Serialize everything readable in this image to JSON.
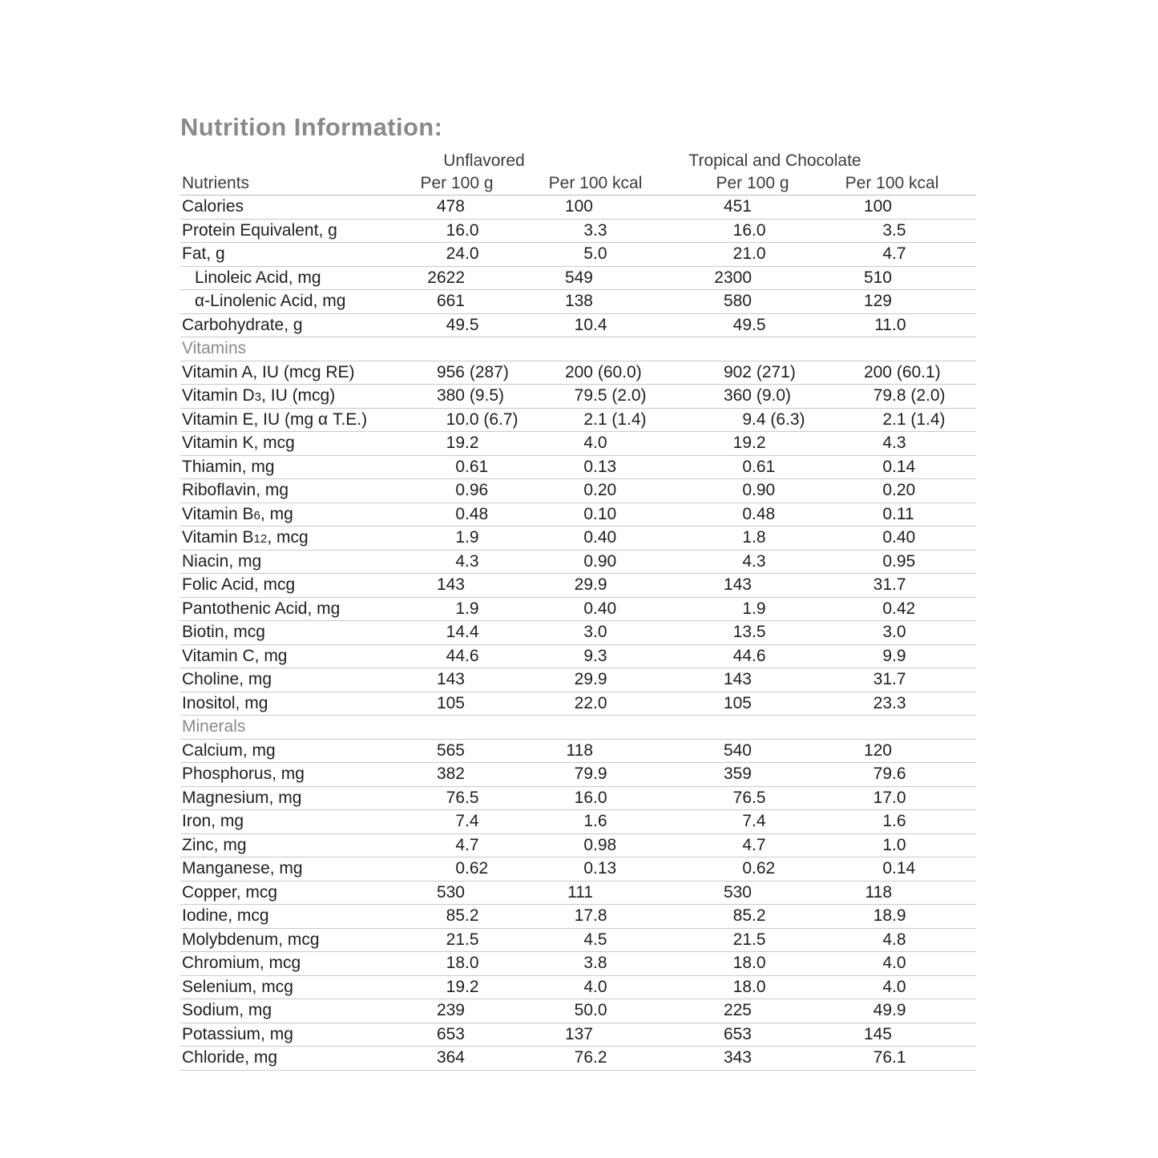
{
  "title": "Nutrition Information:",
  "colors": {
    "title_gray": "#8a8a8a",
    "header_text": "#3d3d3d",
    "body_text": "#1f1f1f",
    "rule_gray": "#c9c9c9"
  },
  "table": {
    "group_headers": [
      {
        "label": "Unflavored"
      },
      {
        "label": "Tropical and Chocolate"
      }
    ],
    "columns": {
      "nutrients": "Nutrients",
      "col1": "Per 100 g",
      "col2": "Per 100 kcal",
      "col3": "Per 100 g",
      "col4": "Per 100 kcal"
    },
    "rows": [
      {
        "parts": [
          {
            "t": "Calories"
          }
        ],
        "values": [
          "478",
          "100",
          "451",
          "100"
        ]
      },
      {
        "parts": [
          {
            "t": "Protein Equivalent, g"
          }
        ],
        "values": [
          "16.0",
          "3.3",
          "16.0",
          "3.5"
        ]
      },
      {
        "parts": [
          {
            "t": "Fat, g"
          }
        ],
        "values": [
          "24.0",
          "5.0",
          "21.0",
          "4.7"
        ]
      },
      {
        "indent": true,
        "parts": [
          {
            "t": "Linoleic Acid, mg"
          }
        ],
        "values": [
          "2622",
          "549",
          "2300",
          "510"
        ]
      },
      {
        "indent": true,
        "parts": [
          {
            "t": "α-Linolenic Acid, mg"
          }
        ],
        "values": [
          "661",
          "138",
          "580",
          "129"
        ]
      },
      {
        "parts": [
          {
            "t": "Carbohydrate, g"
          }
        ],
        "values": [
          "49.5",
          "10.4",
          "49.5",
          "11.0"
        ]
      },
      {
        "section": true,
        "parts": [
          {
            "t": "Vitamins"
          }
        ]
      },
      {
        "parts": [
          {
            "t": "Vitamin A, IU (mcg RE)"
          }
        ],
        "values": [
          "956 (287)",
          "200 (60.0)",
          "902 (271)",
          "200 (60.1)"
        ]
      },
      {
        "parts": [
          {
            "t": "Vitamin D"
          },
          {
            "t": "3",
            "sub": true
          },
          {
            "t": ", IU (mcg)"
          }
        ],
        "values": [
          "380 (9.5)",
          "79.5 (2.0)",
          "360 (9.0)",
          "79.8 (2.0)"
        ]
      },
      {
        "parts": [
          {
            "t": "Vitamin E, IU (mg α T.E.)"
          }
        ],
        "values": [
          "10.0 (6.7)",
          "2.1 (1.4)",
          "9.4 (6.3)",
          "2.1 (1.4)"
        ]
      },
      {
        "parts": [
          {
            "t": "Vitamin K, mcg"
          }
        ],
        "values": [
          "19.2",
          "4.0",
          "19.2",
          "4.3"
        ]
      },
      {
        "parts": [
          {
            "t": "Thiamin, mg"
          }
        ],
        "values": [
          "0.61",
          "0.13",
          "0.61",
          "0.14"
        ]
      },
      {
        "parts": [
          {
            "t": "Riboflavin, mg"
          }
        ],
        "values": [
          "0.96",
          "0.20",
          "0.90",
          "0.20"
        ]
      },
      {
        "parts": [
          {
            "t": "Vitamin B"
          },
          {
            "t": "6",
            "sub": true
          },
          {
            "t": ", mg"
          }
        ],
        "values": [
          "0.48",
          "0.10",
          "0.48",
          "0.11"
        ]
      },
      {
        "parts": [
          {
            "t": "Vitamin B"
          },
          {
            "t": "12",
            "sub": true
          },
          {
            "t": ", mcg"
          }
        ],
        "values": [
          "1.9",
          "0.40",
          "1.8",
          "0.40"
        ]
      },
      {
        "parts": [
          {
            "t": "Niacin, mg"
          }
        ],
        "values": [
          "4.3",
          "0.90",
          "4.3",
          "0.95"
        ]
      },
      {
        "parts": [
          {
            "t": "Folic Acid, mcg"
          }
        ],
        "values": [
          "143",
          "29.9",
          "143",
          "31.7"
        ]
      },
      {
        "parts": [
          {
            "t": "Pantothenic Acid, mg"
          }
        ],
        "values": [
          "1.9",
          "0.40",
          "1.9",
          "0.42"
        ]
      },
      {
        "parts": [
          {
            "t": "Biotin, mcg"
          }
        ],
        "values": [
          "14.4",
          "3.0",
          "13.5",
          "3.0"
        ]
      },
      {
        "parts": [
          {
            "t": "Vitamin C, mg"
          }
        ],
        "values": [
          "44.6",
          "9.3",
          "44.6",
          "9.9"
        ]
      },
      {
        "parts": [
          {
            "t": "Choline, mg"
          }
        ],
        "values": [
          "143",
          "29.9",
          "143",
          "31.7"
        ]
      },
      {
        "parts": [
          {
            "t": "Inositol, mg"
          }
        ],
        "values": [
          "105",
          "22.0",
          "105",
          "23.3"
        ]
      },
      {
        "section": true,
        "parts": [
          {
            "t": "Minerals"
          }
        ]
      },
      {
        "parts": [
          {
            "t": "Calcium, mg"
          }
        ],
        "values": [
          "565",
          "118",
          "540",
          "120"
        ]
      },
      {
        "parts": [
          {
            "t": "Phosphorus, mg"
          }
        ],
        "values": [
          "382",
          "79.9",
          "359",
          "79.6"
        ]
      },
      {
        "parts": [
          {
            "t": "Magnesium, mg"
          }
        ],
        "values": [
          "76.5",
          "16.0",
          "76.5",
          "17.0"
        ]
      },
      {
        "parts": [
          {
            "t": "Iron, mg"
          }
        ],
        "values": [
          "7.4",
          "1.6",
          "7.4",
          "1.6"
        ]
      },
      {
        "parts": [
          {
            "t": "Zinc, mg"
          }
        ],
        "values": [
          "4.7",
          "0.98",
          "4.7",
          "1.0"
        ]
      },
      {
        "parts": [
          {
            "t": "Manganese, mg"
          }
        ],
        "values": [
          "0.62",
          "0.13",
          "0.62",
          "0.14"
        ]
      },
      {
        "parts": [
          {
            "t": "Copper, mcg"
          }
        ],
        "values": [
          "530",
          "111",
          "530",
          "118"
        ]
      },
      {
        "parts": [
          {
            "t": "Iodine, mcg"
          }
        ],
        "values": [
          "85.2",
          "17.8",
          "85.2",
          "18.9"
        ]
      },
      {
        "parts": [
          {
            "t": "Molybdenum, mcg"
          }
        ],
        "values": [
          "21.5",
          "4.5",
          "21.5",
          "4.8"
        ]
      },
      {
        "parts": [
          {
            "t": "Chromium, mcg"
          }
        ],
        "values": [
          "18.0",
          "3.8",
          "18.0",
          "4.0"
        ]
      },
      {
        "parts": [
          {
            "t": "Selenium, mcg"
          }
        ],
        "values": [
          "19.2",
          "4.0",
          "18.0",
          "4.0"
        ]
      },
      {
        "parts": [
          {
            "t": "Sodium, mg"
          }
        ],
        "values": [
          "239",
          "50.0",
          "225",
          "49.9"
        ]
      },
      {
        "parts": [
          {
            "t": "Potassium, mg"
          }
        ],
        "values": [
          "653",
          "137",
          "653",
          "145"
        ]
      },
      {
        "parts": [
          {
            "t": "Chloride, mg"
          }
        ],
        "values": [
          "364",
          "76.2",
          "343",
          "76.1"
        ]
      }
    ]
  }
}
